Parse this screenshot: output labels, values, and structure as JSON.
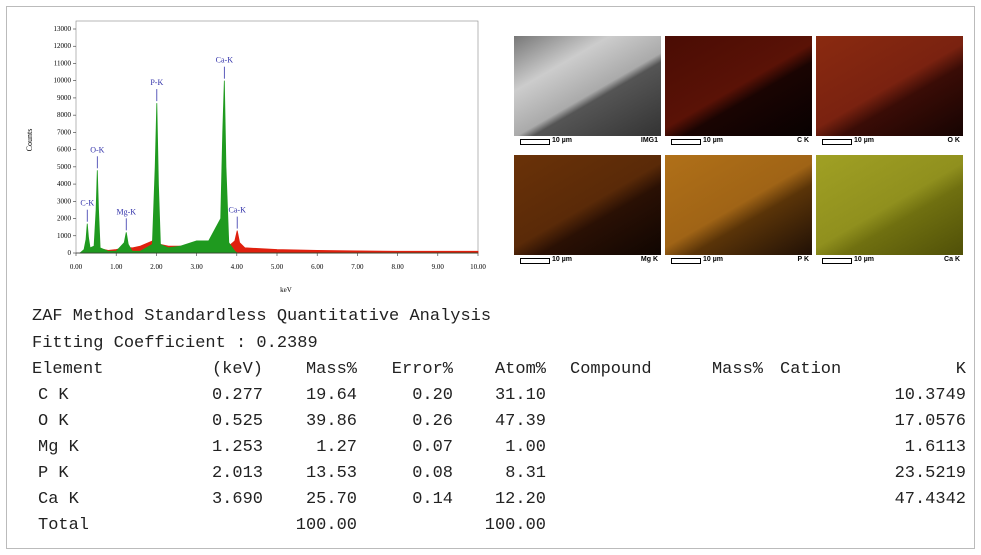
{
  "chart_data": {
    "type": "area",
    "y_label": "Counts",
    "x_label": "keV",
    "x": [
      0.1,
      0.2,
      0.25,
      0.28,
      0.31,
      0.35,
      0.45,
      0.5,
      0.53,
      0.56,
      0.6,
      0.8,
      1.0,
      1.2,
      1.25,
      1.3,
      1.4,
      1.6,
      1.9,
      1.97,
      2.01,
      2.05,
      2.1,
      2.3,
      2.6,
      3.0,
      3.3,
      3.6,
      3.65,
      3.69,
      3.73,
      3.8,
      3.95,
      4.01,
      4.07,
      4.2,
      5.0,
      6.0,
      7.0,
      8.0,
      9.0,
      9.5,
      10.0
    ],
    "series": [
      {
        "color": "#e0200e",
        "values": [
          0,
          100,
          200,
          300,
          200,
          150,
          200,
          300,
          300,
          300,
          250,
          150,
          200,
          300,
          300,
          300,
          300,
          400,
          700,
          1000,
          1100,
          900,
          500,
          400,
          400,
          400,
          400,
          400,
          500,
          600,
          500,
          400,
          700,
          1300,
          600,
          300,
          200,
          150,
          120,
          100,
          100,
          100,
          100
        ]
      },
      {
        "color": "#1f9a1f",
        "values": [
          0,
          200,
          800,
          1700,
          900,
          300,
          400,
          2500,
          4800,
          2500,
          300,
          100,
          100,
          600,
          1200,
          500,
          100,
          100,
          500,
          5000,
          8700,
          4000,
          500,
          300,
          400,
          700,
          700,
          2000,
          7000,
          10000,
          5000,
          600,
          100,
          0,
          0,
          0,
          0,
          0,
          0,
          0,
          0,
          0,
          0
        ]
      }
    ],
    "annotations": [
      {
        "label": "C-K",
        "x": 0.28,
        "y": 1700
      },
      {
        "label": "O-K",
        "x": 0.53,
        "y": 4800
      },
      {
        "label": "Mg-K",
        "x": 1.25,
        "y": 1200
      },
      {
        "label": "P-K",
        "x": 2.01,
        "y": 8700
      },
      {
        "label": "Ca-K",
        "x": 3.69,
        "y": 10000
      },
      {
        "label": "Ca-K",
        "x": 4.01,
        "y": 1300
      }
    ],
    "xlim": [
      0,
      10
    ],
    "ylim": [
      0,
      13000
    ],
    "xticks": [
      {
        "value": 0,
        "label": "0.00"
      },
      {
        "value": 1,
        "label": "1.00"
      },
      {
        "value": 2,
        "label": "2.00"
      },
      {
        "value": 3,
        "label": "3.00"
      },
      {
        "value": 4,
        "label": "4.00"
      },
      {
        "value": 5,
        "label": "5.00"
      },
      {
        "value": 6,
        "label": "6.00"
      },
      {
        "value": 7,
        "label": "7.00"
      },
      {
        "value": 8,
        "label": "8.00"
      },
      {
        "value": 9,
        "label": "9.00"
      },
      {
        "value": 10,
        "label": "10.00"
      }
    ],
    "yticks": [
      0,
      1000,
      2000,
      3000,
      4000,
      5000,
      6000,
      7000,
      8000,
      9000,
      10000,
      11000,
      12000,
      13000
    ]
  },
  "maps": {
    "scale": "10 µm",
    "panels": [
      "IMG1",
      "C K",
      "O K",
      "Mg K",
      "P K",
      "Ca K"
    ]
  },
  "table": {
    "title": "ZAF Method Standardless Quantitative Analysis",
    "fitting": "Fitting Coefficient : 0.2389",
    "header": [
      "Element",
      "(keV)",
      "Mass%",
      "Error%",
      "Atom%",
      "Compound",
      "Mass%",
      "Cation",
      "K"
    ],
    "rows": [
      [
        "C K",
        "0.277",
        "19.64",
        "0.20",
        "31.10",
        null,
        null,
        null,
        "10.3749"
      ],
      [
        "O K",
        "0.525",
        "39.86",
        "0.26",
        "47.39",
        null,
        null,
        null,
        "17.0576"
      ],
      [
        "Mg K",
        "1.253",
        "1.27",
        "0.07",
        "1.00",
        null,
        null,
        null,
        "1.6113"
      ],
      [
        "P K",
        "2.013",
        "13.53",
        "0.08",
        "8.31",
        null,
        null,
        null,
        "23.5219"
      ],
      [
        "Ca K",
        "3.690",
        "25.70",
        "0.14",
        "12.20",
        null,
        null,
        null,
        "47.4342"
      ],
      [
        "Total",
        null,
        "100.00",
        null,
        "100.00",
        null,
        null,
        null,
        null
      ]
    ]
  }
}
